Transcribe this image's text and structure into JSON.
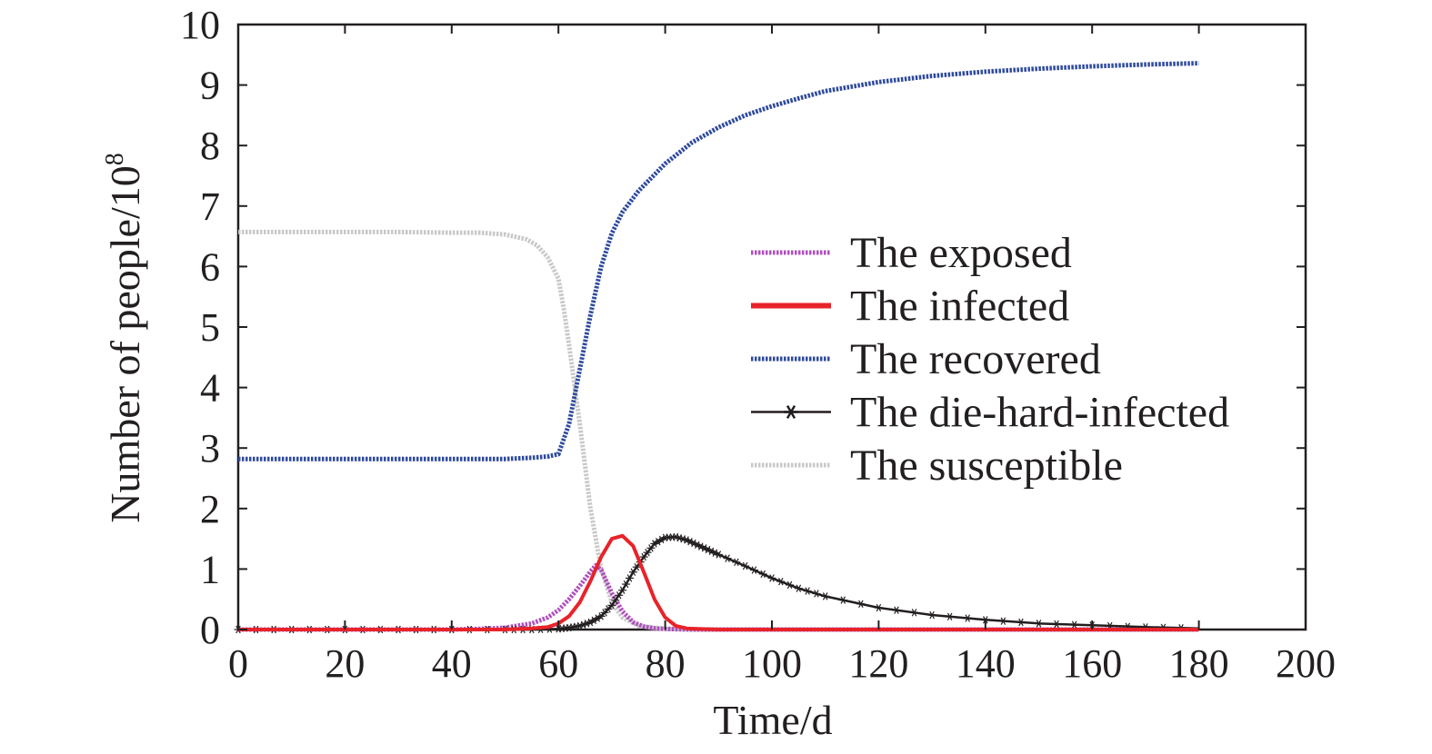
{
  "chart_data": {
    "type": "line",
    "xlabel": "Time/d",
    "ylabel_main": "Number of people/10",
    "ylabel_exp": "8",
    "xlim": [
      0,
      200
    ],
    "ylim": [
      0,
      10
    ],
    "x_ticks": [
      "0",
      "20",
      "40",
      "60",
      "80",
      "100",
      "120",
      "140",
      "160",
      "180",
      "200"
    ],
    "y_ticks": [
      "0",
      "1",
      "2",
      "3",
      "4",
      "5",
      "6",
      "7",
      "8",
      "9",
      "10"
    ],
    "grid": false,
    "legend_position": "center-right",
    "series": [
      {
        "name": "The exposed",
        "color": "#b04fbf",
        "style": "dotted",
        "x": [
          0,
          10,
          20,
          30,
          40,
          45,
          50,
          55,
          58,
          60,
          62,
          64,
          66,
          67,
          68,
          70,
          72,
          74,
          76,
          78,
          80,
          85,
          90,
          100,
          120,
          140,
          160,
          180
        ],
        "y": [
          0,
          0,
          0,
          0,
          0,
          0.01,
          0.03,
          0.1,
          0.2,
          0.32,
          0.5,
          0.72,
          0.96,
          1.06,
          0.99,
          0.6,
          0.3,
          0.12,
          0.05,
          0.02,
          0.01,
          0,
          0,
          0,
          0,
          0,
          0,
          0
        ]
      },
      {
        "name": "The infected",
        "color": "#e8232a",
        "style": "solid",
        "x": [
          0,
          10,
          20,
          30,
          40,
          50,
          55,
          58,
          60,
          62,
          64,
          66,
          68,
          70,
          72,
          74,
          76,
          78,
          80,
          82,
          84,
          86,
          90,
          100,
          120,
          140,
          160,
          180
        ],
        "y": [
          0,
          0,
          0,
          0,
          0,
          0,
          0.02,
          0.04,
          0.1,
          0.22,
          0.45,
          0.8,
          1.2,
          1.5,
          1.55,
          1.38,
          0.95,
          0.5,
          0.2,
          0.06,
          0.02,
          0.01,
          0,
          0,
          0,
          0,
          0,
          0
        ]
      },
      {
        "name": "The recovered",
        "color": "#2e4a9e",
        "style": "dotted",
        "x": [
          0,
          10,
          20,
          30,
          40,
          50,
          55,
          58,
          60,
          62,
          64,
          66,
          68,
          70,
          72,
          75,
          80,
          85,
          90,
          95,
          100,
          105,
          110,
          120,
          130,
          140,
          150,
          160,
          170,
          180
        ],
        "y": [
          2.82,
          2.82,
          2.82,
          2.82,
          2.82,
          2.82,
          2.84,
          2.86,
          2.9,
          3.4,
          4.3,
          5.2,
          6.0,
          6.55,
          6.9,
          7.25,
          7.7,
          8.05,
          8.3,
          8.5,
          8.65,
          8.78,
          8.9,
          9.05,
          9.15,
          9.22,
          9.27,
          9.31,
          9.34,
          9.36
        ]
      },
      {
        "name": "The die-hard-infected",
        "color": "#231f20",
        "style": "solid-asterisk",
        "x": [
          0,
          10,
          20,
          30,
          40,
          50,
          55,
          60,
          62,
          64,
          66,
          68,
          70,
          72,
          74,
          76,
          78,
          80,
          82,
          84,
          86,
          88,
          90,
          95,
          100,
          105,
          110,
          120,
          130,
          140,
          150,
          160,
          170,
          180
        ],
        "y": [
          0,
          0,
          0,
          0,
          0,
          0,
          0,
          0.01,
          0.03,
          0.06,
          0.12,
          0.22,
          0.4,
          0.65,
          0.95,
          1.2,
          1.42,
          1.52,
          1.53,
          1.48,
          1.4,
          1.32,
          1.24,
          1.05,
          0.85,
          0.68,
          0.55,
          0.36,
          0.24,
          0.16,
          0.1,
          0.07,
          0.04,
          0.02
        ]
      },
      {
        "name": "The susceptible",
        "color": "#c8c8c8",
        "style": "dotted",
        "x": [
          0,
          10,
          20,
          30,
          40,
          45,
          50,
          54,
          56,
          58,
          60,
          61,
          62,
          64,
          66,
          68,
          70,
          72,
          75,
          80,
          90,
          100,
          120,
          140,
          160,
          180
        ],
        "y": [
          6.57,
          6.57,
          6.57,
          6.57,
          6.56,
          6.56,
          6.53,
          6.45,
          6.35,
          6.15,
          5.8,
          5.3,
          4.7,
          3.4,
          2.0,
          1.0,
          0.45,
          0.2,
          0.06,
          0.01,
          0,
          0,
          0,
          0,
          0,
          0
        ]
      }
    ]
  }
}
